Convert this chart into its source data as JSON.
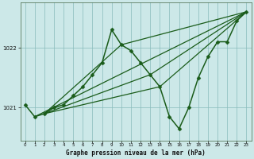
{
  "bg_color": "#cce8e8",
  "grid_color": "#88bbbb",
  "line_color": "#1a5c1a",
  "x_label": "Graphe pression niveau de la mer (hPa)",
  "ylim": [
    1020.45,
    1022.75
  ],
  "xlim": [
    -0.5,
    23.5
  ],
  "yticks": [
    1021,
    1022
  ],
  "xticks": [
    0,
    1,
    2,
    3,
    4,
    5,
    6,
    7,
    8,
    9,
    10,
    11,
    12,
    13,
    14,
    15,
    16,
    17,
    18,
    19,
    20,
    21,
    22,
    23
  ],
  "series": [
    {
      "x": [
        0,
        1,
        2,
        3,
        4,
        5,
        6,
        7,
        8,
        9,
        10,
        11,
        12,
        13,
        14,
        15,
        16,
        17,
        18,
        19,
        20,
        21,
        22,
        23
      ],
      "y": [
        1021.05,
        1020.85,
        1020.9,
        1021.0,
        1021.05,
        1021.2,
        1021.35,
        1021.55,
        1021.75,
        1022.3,
        1022.05,
        1021.95,
        1021.75,
        1021.55,
        1021.35,
        1020.85,
        1020.65,
        1021.0,
        1021.5,
        1021.85,
        1022.1,
        1022.1,
        1022.45,
        1022.6
      ],
      "marker": "D",
      "markersize": 2.5,
      "linewidth": 1.1
    },
    {
      "x": [
        1,
        23
      ],
      "y": [
        1020.85,
        1022.6
      ],
      "marker": null,
      "linewidth": 0.9
    },
    {
      "x": [
        2,
        10,
        23
      ],
      "y": [
        1020.9,
        1022.05,
        1022.6
      ],
      "marker": null,
      "linewidth": 0.9
    },
    {
      "x": [
        2,
        13,
        23
      ],
      "y": [
        1020.9,
        1021.55,
        1022.6
      ],
      "marker": null,
      "linewidth": 0.9
    },
    {
      "x": [
        2,
        14,
        23
      ],
      "y": [
        1020.9,
        1021.35,
        1022.6
      ],
      "marker": null,
      "linewidth": 0.9
    }
  ]
}
